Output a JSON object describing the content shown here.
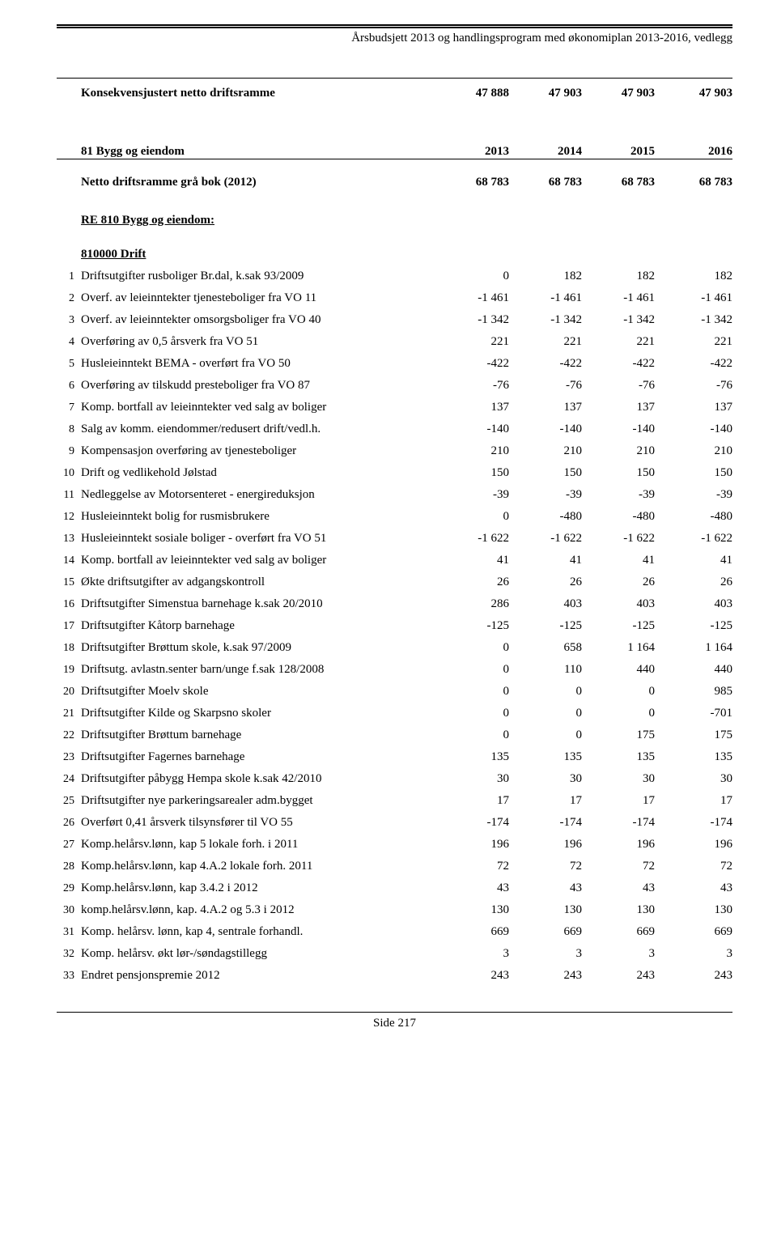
{
  "header": "Årsbudsjett 2013 og handlingsprogram med økonomiplan 2013-2016, vedlegg",
  "konsekvens": {
    "label": "Konsekvensjustert netto driftsramme",
    "values": [
      "47 888",
      "47 903",
      "47 903",
      "47 903"
    ]
  },
  "section81": {
    "title": "81 Bygg og eiendom",
    "years": [
      "2013",
      "2014",
      "2015",
      "2016"
    ]
  },
  "nettoDrift": {
    "label": "Netto driftsramme grå bok (2012)",
    "values": [
      "68 783",
      "68 783",
      "68 783",
      "68 783"
    ]
  },
  "re810": "RE 810 Bygg og eiendom:",
  "driftTitle": "810000 Drift",
  "rows": [
    {
      "n": "1",
      "d": "Driftsutgifter rusboliger Br.dal, k.sak 93/2009",
      "v": [
        "0",
        "182",
        "182",
        "182"
      ]
    },
    {
      "n": "2",
      "d": "Overf. av leieinntekter tjenesteboliger fra VO 11",
      "v": [
        "-1 461",
        "-1 461",
        "-1 461",
        "-1 461"
      ]
    },
    {
      "n": "3",
      "d": "Overf. av leieinntekter omsorgsboliger fra VO 40",
      "v": [
        "-1 342",
        "-1 342",
        "-1 342",
        "-1 342"
      ]
    },
    {
      "n": "4",
      "d": "Overføring av 0,5 årsverk fra VO 51",
      "v": [
        "221",
        "221",
        "221",
        "221"
      ]
    },
    {
      "n": "5",
      "d": "Husleieinntekt BEMA - overført fra VO 50",
      "v": [
        "-422",
        "-422",
        "-422",
        "-422"
      ]
    },
    {
      "n": "6",
      "d": "Overføring av tilskudd presteboliger fra VO 87",
      "v": [
        "-76",
        "-76",
        "-76",
        "-76"
      ]
    },
    {
      "n": "7",
      "d": "Komp. bortfall av leieinntekter ved salg av boliger",
      "v": [
        "137",
        "137",
        "137",
        "137"
      ]
    },
    {
      "n": "8",
      "d": "Salg av komm. eiendommer/redusert drift/vedl.h.",
      "v": [
        "-140",
        "-140",
        "-140",
        "-140"
      ]
    },
    {
      "n": "9",
      "d": "Kompensasjon overføring av tjenesteboliger",
      "v": [
        "210",
        "210",
        "210",
        "210"
      ]
    },
    {
      "n": "10",
      "d": "Drift og vedlikehold Jølstad",
      "v": [
        "150",
        "150",
        "150",
        "150"
      ]
    },
    {
      "n": "11",
      "d": "Nedleggelse av Motorsenteret - energireduksjon",
      "v": [
        "-39",
        "-39",
        "-39",
        "-39"
      ]
    },
    {
      "n": "12",
      "d": "Husleieinntekt bolig for rusmisbrukere",
      "v": [
        "0",
        "-480",
        "-480",
        "-480"
      ]
    },
    {
      "n": "13",
      "d": "Husleieinntekt sosiale boliger - overført fra VO 51",
      "v": [
        "-1 622",
        "-1 622",
        "-1 622",
        "-1 622"
      ]
    },
    {
      "n": "14",
      "d": "Komp. bortfall av leieinntekter ved salg av boliger",
      "v": [
        "41",
        "41",
        "41",
        "41"
      ]
    },
    {
      "n": "15",
      "d": "Økte driftsutgifter av adgangskontroll",
      "v": [
        "26",
        "26",
        "26",
        "26"
      ]
    },
    {
      "n": "16",
      "d": "Driftsutgifter Simenstua barnehage k.sak 20/2010",
      "v": [
        "286",
        "403",
        "403",
        "403"
      ]
    },
    {
      "n": "17",
      "d": "Driftsutgifter Kåtorp barnehage",
      "v": [
        "-125",
        "-125",
        "-125",
        "-125"
      ]
    },
    {
      "n": "18",
      "d": "Driftsutgifter Brøttum skole, k.sak 97/2009",
      "v": [
        "0",
        "658",
        "1 164",
        "1 164"
      ]
    },
    {
      "n": "19",
      "d": "Driftsutg. avlastn.senter barn/unge f.sak 128/2008",
      "v": [
        "0",
        "110",
        "440",
        "440"
      ]
    },
    {
      "n": "20",
      "d": "Driftsutgifter Moelv skole",
      "v": [
        "0",
        "0",
        "0",
        "985"
      ]
    },
    {
      "n": "21",
      "d": "Driftsutgifter Kilde og Skarpsno skoler",
      "v": [
        "0",
        "0",
        "0",
        "-701"
      ]
    },
    {
      "n": "22",
      "d": "Driftsutgifter Brøttum barnehage",
      "v": [
        "0",
        "0",
        "175",
        "175"
      ]
    },
    {
      "n": "23",
      "d": "Driftsutgifter Fagernes barnehage",
      "v": [
        "135",
        "135",
        "135",
        "135"
      ]
    },
    {
      "n": "24",
      "d": "Driftsutgifter påbygg Hempa skole k.sak 42/2010",
      "v": [
        "30",
        "30",
        "30",
        "30"
      ]
    },
    {
      "n": "25",
      "d": "Driftsutgifter nye parkeringsarealer adm.bygget",
      "v": [
        "17",
        "17",
        "17",
        "17"
      ]
    },
    {
      "n": "26",
      "d": "Overført 0,41 årsverk tilsynsfører til VO 55",
      "v": [
        "-174",
        "-174",
        "-174",
        "-174"
      ]
    },
    {
      "n": "27",
      "d": "Komp.helårsv.lønn, kap 5 lokale forh. i 2011",
      "v": [
        "196",
        "196",
        "196",
        "196"
      ]
    },
    {
      "n": "28",
      "d": "Komp.helårsv.lønn, kap 4.A.2 lokale forh. 2011",
      "v": [
        "72",
        "72",
        "72",
        "72"
      ]
    },
    {
      "n": "29",
      "d": "Komp.helårsv.lønn, kap 3.4.2 i 2012",
      "v": [
        "43",
        "43",
        "43",
        "43"
      ]
    },
    {
      "n": "30",
      "d": "komp.helårsv.lønn, kap. 4.A.2 og 5.3 i 2012",
      "v": [
        "130",
        "130",
        "130",
        "130"
      ]
    },
    {
      "n": "31",
      "d": "Komp. helårsv. lønn, kap 4, sentrale forhandl.",
      "v": [
        "669",
        "669",
        "669",
        "669"
      ]
    },
    {
      "n": "32",
      "d": "Komp. helårsv. økt lør-/søndagstillegg",
      "v": [
        "3",
        "3",
        "3",
        "3"
      ]
    },
    {
      "n": "33",
      "d": "Endret pensjonspremie 2012",
      "v": [
        "243",
        "243",
        "243",
        "243"
      ]
    }
  ],
  "footer": "Side 217"
}
